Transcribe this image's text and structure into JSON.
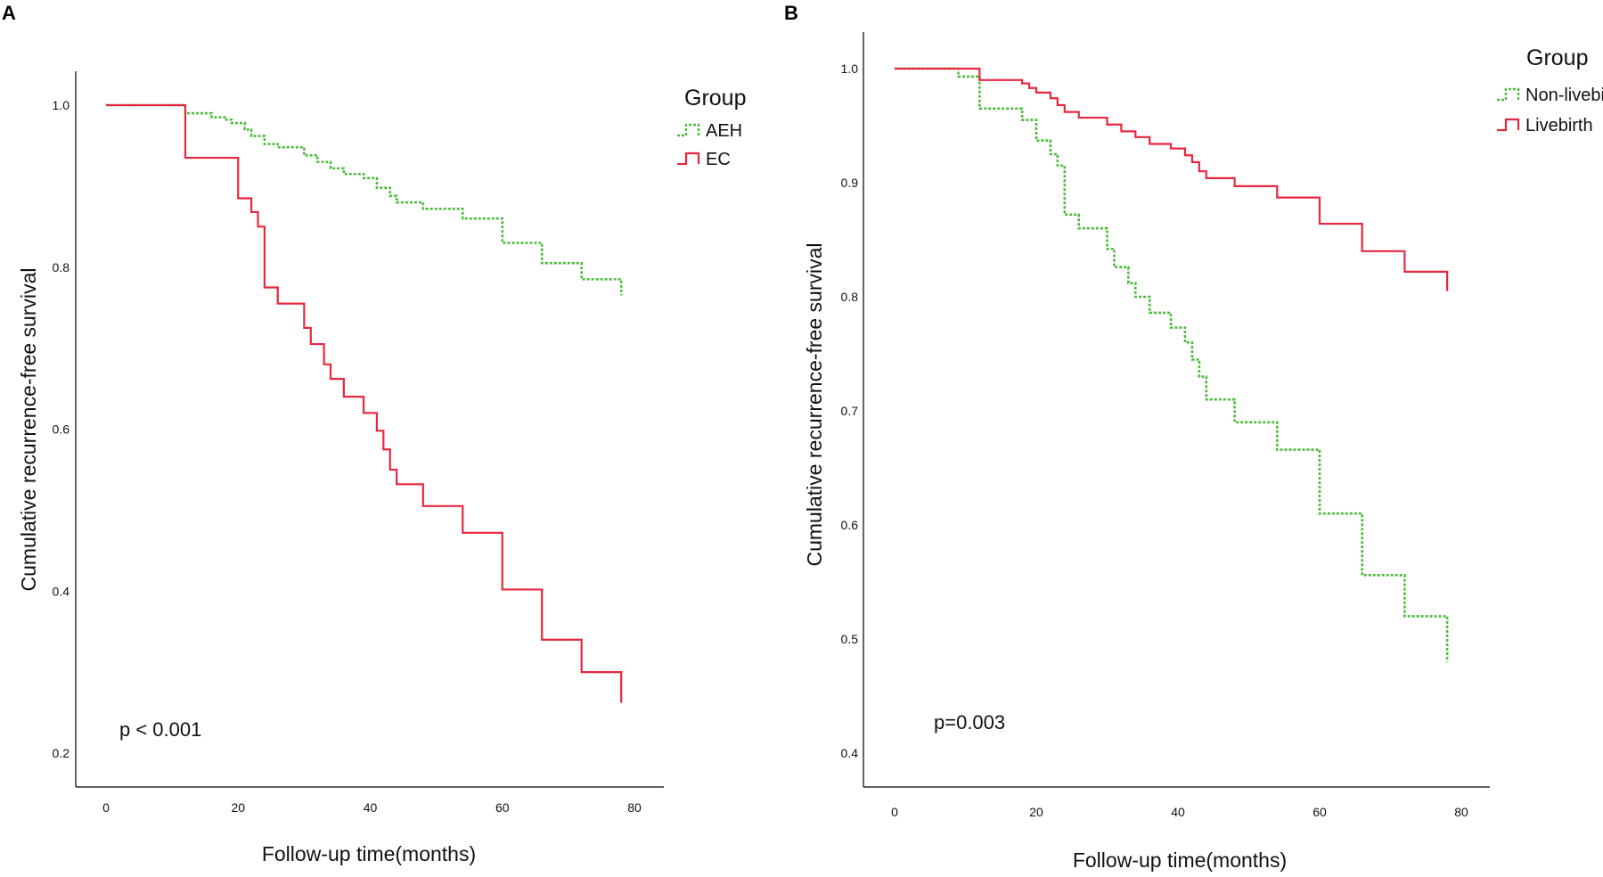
{
  "panels": [
    {
      "letter": "A",
      "p_value": "p < 0.001",
      "legend_title": "Group",
      "chart_data": {
        "type": "line",
        "title": "",
        "xlabel": "Follow-up time(months)",
        "ylabel": "Cumulative recurrence-free survival",
        "xlim": [
          0,
          80
        ],
        "ylim": [
          0.2,
          1.0
        ],
        "xticks": [
          0,
          20,
          40,
          60,
          80
        ],
        "yticks": [
          0.2,
          0.4,
          0.6,
          0.8,
          1.0
        ],
        "xtick_labels": [
          "0",
          "20",
          "40",
          "60",
          "80"
        ],
        "ytick_labels": [
          "0.2",
          "0.4",
          "0.6",
          "0.8",
          "1.0"
        ],
        "series": [
          {
            "name": "AEH",
            "color": "#4cbb3c",
            "dashed": true,
            "steps": [
              [
                0,
                1.0
              ],
              [
                9,
                1.0
              ],
              [
                12,
                0.99
              ],
              [
                16,
                0.985
              ],
              [
                18,
                0.982
              ],
              [
                19,
                0.978
              ],
              [
                21,
                0.97
              ],
              [
                22,
                0.962
              ],
              [
                24,
                0.952
              ],
              [
                26,
                0.948
              ],
              [
                30,
                0.938
              ],
              [
                32,
                0.93
              ],
              [
                34,
                0.922
              ],
              [
                36,
                0.915
              ],
              [
                39,
                0.91
              ],
              [
                41,
                0.898
              ],
              [
                43,
                0.888
              ],
              [
                44,
                0.88
              ],
              [
                48,
                0.872
              ],
              [
                54,
                0.86
              ],
              [
                60,
                0.83
              ],
              [
                66,
                0.805
              ],
              [
                72,
                0.785
              ],
              [
                78,
                0.785
              ],
              [
                78,
                0.765
              ]
            ]
          },
          {
            "name": "EC",
            "color": "#e8273f",
            "dashed": false,
            "steps": [
              [
                0,
                1.0
              ],
              [
                9,
                1.0
              ],
              [
                12,
                0.985
              ],
              [
                12,
                0.935
              ],
              [
                18,
                0.935
              ],
              [
                20,
                0.918
              ],
              [
                20,
                0.885
              ],
              [
                22,
                0.868
              ],
              [
                23,
                0.85
              ],
              [
                24,
                0.775
              ],
              [
                26,
                0.755
              ],
              [
                30,
                0.725
              ],
              [
                31,
                0.705
              ],
              [
                33,
                0.68
              ],
              [
                34,
                0.662
              ],
              [
                36,
                0.64
              ],
              [
                39,
                0.62
              ],
              [
                41,
                0.598
              ],
              [
                42,
                0.575
              ],
              [
                43,
                0.55
              ],
              [
                44,
                0.532
              ],
              [
                48,
                0.505
              ],
              [
                54,
                0.472
              ],
              [
                60,
                0.402
              ],
              [
                66,
                0.34
              ],
              [
                72,
                0.3
              ],
              [
                78,
                0.3
              ],
              [
                78,
                0.262
              ]
            ]
          }
        ]
      }
    },
    {
      "letter": "B",
      "p_value": "p=0.003",
      "legend_title": "Group",
      "chart_data": {
        "type": "line",
        "title": "",
        "xlabel": "Follow-up time(months)",
        "ylabel": "Cumulative recurrence-free survival",
        "xlim": [
          0,
          80
        ],
        "ylim": [
          0.4,
          1.0
        ],
        "xticks": [
          0,
          20,
          40,
          60,
          80
        ],
        "yticks": [
          0.4,
          0.5,
          0.6,
          0.7,
          0.8,
          0.9,
          1.0
        ],
        "xtick_labels": [
          "0",
          "20",
          "40",
          "60",
          "80"
        ],
        "ytick_labels": [
          "0.4",
          "0.5",
          "0.6",
          "0.7",
          "0.8",
          "0.9",
          "1.0"
        ],
        "series": [
          {
            "name": "Non-livebirth",
            "color": "#4cbb3c",
            "dashed": true,
            "steps": [
              [
                0,
                1.0
              ],
              [
                9,
                1.0
              ],
              [
                9,
                0.993
              ],
              [
                12,
                0.993
              ],
              [
                12,
                0.965
              ],
              [
                18,
                0.965
              ],
              [
                18,
                0.955
              ],
              [
                20,
                0.955
              ],
              [
                20,
                0.937
              ],
              [
                22,
                0.937
              ],
              [
                22,
                0.925
              ],
              [
                23,
                0.915
              ],
              [
                24,
                0.872
              ],
              [
                26,
                0.86
              ],
              [
                30,
                0.842
              ],
              [
                31,
                0.826
              ],
              [
                33,
                0.812
              ],
              [
                34,
                0.8
              ],
              [
                36,
                0.786
              ],
              [
                39,
                0.773
              ],
              [
                41,
                0.76
              ],
              [
                42,
                0.745
              ],
              [
                43,
                0.73
              ],
              [
                44,
                0.71
              ],
              [
                48,
                0.69
              ],
              [
                54,
                0.666
              ],
              [
                60,
                0.61
              ],
              [
                66,
                0.556
              ],
              [
                72,
                0.52
              ],
              [
                78,
                0.52
              ],
              [
                78,
                0.48
              ]
            ]
          },
          {
            "name": "Livebirth",
            "color": "#e8273f",
            "dashed": false,
            "steps": [
              [
                0,
                1.0
              ],
              [
                9,
                1.0
              ],
              [
                12,
                0.99
              ],
              [
                18,
                0.987
              ],
              [
                19,
                0.983
              ],
              [
                20,
                0.979
              ],
              [
                22,
                0.974
              ],
              [
                23,
                0.968
              ],
              [
                24,
                0.962
              ],
              [
                26,
                0.957
              ],
              [
                30,
                0.951
              ],
              [
                32,
                0.945
              ],
              [
                34,
                0.94
              ],
              [
                36,
                0.934
              ],
              [
                39,
                0.93
              ],
              [
                41,
                0.924
              ],
              [
                42,
                0.918
              ],
              [
                43,
                0.91
              ],
              [
                44,
                0.904
              ],
              [
                48,
                0.897
              ],
              [
                54,
                0.887
              ],
              [
                60,
                0.864
              ],
              [
                66,
                0.84
              ],
              [
                72,
                0.822
              ],
              [
                78,
                0.822
              ],
              [
                78,
                0.805
              ]
            ]
          }
        ]
      }
    }
  ]
}
